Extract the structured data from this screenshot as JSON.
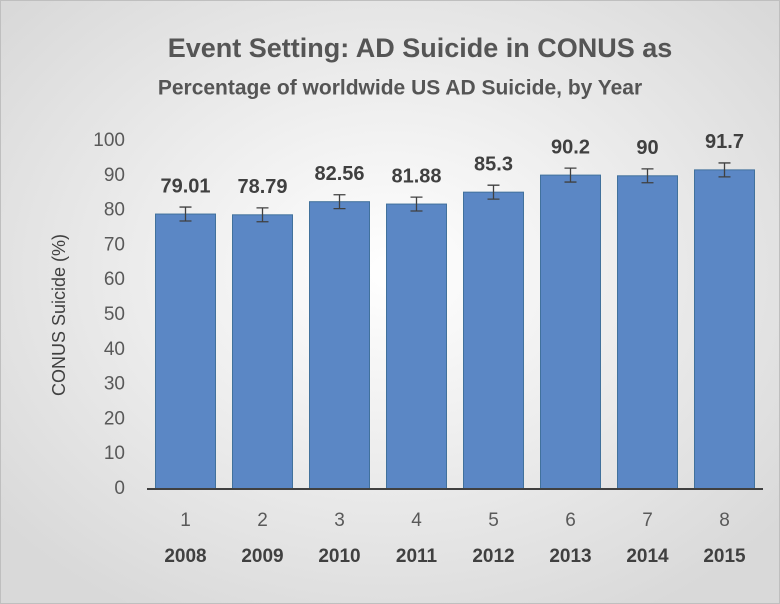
{
  "chart_data": {
    "type": "bar",
    "title": "Event Setting:   AD Suicide in CONUS as",
    "subtitle": "Percentage of worldwide US AD Suicide, by Year",
    "y_label": "CONUS Suicide (%)",
    "categories": [
      "1",
      "2",
      "3",
      "4",
      "5",
      "6",
      "7",
      "8"
    ],
    "category_years": [
      "2008",
      "2009",
      "2010",
      "2011",
      "2012",
      "2013",
      "2014",
      "2015"
    ],
    "values": [
      79.01,
      78.79,
      82.56,
      81.88,
      85.3,
      90.2,
      90,
      91.7
    ],
    "errors": [
      2,
      2,
      2,
      2,
      2,
      2,
      2,
      2
    ],
    "color": "#5b87c5",
    "ylim": [
      0,
      100
    ],
    "yticks": [
      0,
      10,
      20,
      30,
      40,
      50,
      60,
      70,
      80,
      90,
      100
    ]
  }
}
